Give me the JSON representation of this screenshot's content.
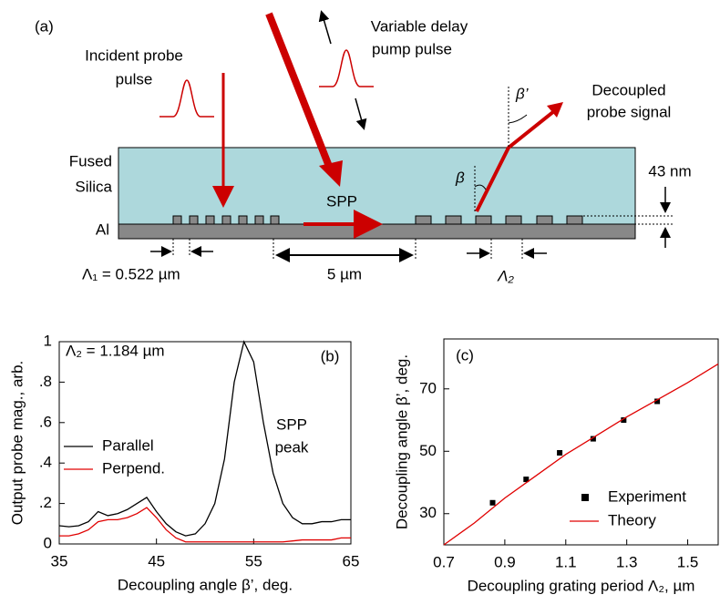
{
  "diagram": {
    "panel_label": "(a)",
    "incident_label": [
      "Incident probe",
      "pulse"
    ],
    "pump_label": [
      "Variable delay",
      "pump pulse"
    ],
    "decoupled_label": [
      "Decoupled",
      "probe signal"
    ],
    "silica_label": [
      "Fused",
      "Silica"
    ],
    "al_label": "Al",
    "spp_label": "SPP",
    "beta_prime": "β’",
    "beta": "β",
    "thickness_label": "43 nm",
    "period1_label": "Λ₁ = 0.522 µm",
    "gap_label": "5 µm",
    "period2_label": "Λ₂"
  },
  "chart_data": [
    {
      "type": "line",
      "xlabel": "Decoupling angle β’, deg.",
      "ylabel": "Output probe mag., arb.",
      "annotations": [
        "Λ₂ = 1.184 µm",
        "(b)",
        "SPP",
        "peak"
      ],
      "x": [
        35,
        36,
        37,
        38,
        39,
        40,
        41,
        42,
        43,
        44,
        45,
        46,
        47,
        48,
        49,
        50,
        51,
        52,
        53,
        54,
        55,
        56,
        57,
        58,
        59,
        60,
        61,
        62,
        63,
        64,
        65
      ],
      "series": [
        {
          "name": "Parallel",
          "color": "#000000",
          "values": [
            0.09,
            0.085,
            0.09,
            0.11,
            0.16,
            0.14,
            0.15,
            0.17,
            0.2,
            0.23,
            0.16,
            0.1,
            0.06,
            0.04,
            0.05,
            0.1,
            0.2,
            0.42,
            0.8,
            1.0,
            0.9,
            0.6,
            0.35,
            0.2,
            0.13,
            0.1,
            0.1,
            0.11,
            0.11,
            0.12,
            0.12
          ]
        },
        {
          "name": "Perpend.",
          "color": "#e00000",
          "values": [
            0.04,
            0.04,
            0.05,
            0.07,
            0.11,
            0.12,
            0.12,
            0.13,
            0.15,
            0.18,
            0.13,
            0.07,
            0.03,
            0.01,
            0.01,
            0.01,
            0.01,
            0.01,
            0.01,
            0.01,
            0.01,
            0.01,
            0.01,
            0.01,
            0.015,
            0.02,
            0.02,
            0.02,
            0.02,
            0.03,
            0.03
          ]
        }
      ],
      "xlim": [
        35,
        65
      ],
      "xticks": [
        35,
        45,
        55,
        65
      ],
      "ylim": [
        0,
        1
      ],
      "yticks": [
        0,
        {
          "value": 0.2,
          "label": ".2"
        },
        {
          "value": 0.4,
          "label": ".4"
        },
        {
          "value": 0.6,
          "label": ".6"
        },
        {
          "value": 0.8,
          "label": ".8"
        },
        1
      ],
      "grid": false
    },
    {
      "type": "scatter",
      "xlabel": "Decoupling grating period Λ₂, µm",
      "ylabel": "Decoupling angle β’, deg.",
      "annotations": [
        "(c)"
      ],
      "series": [
        {
          "name": "Experiment",
          "color": "#000000",
          "type": "scatter",
          "x": [
            0.86,
            0.97,
            1.08,
            1.19,
            1.29,
            1.4
          ],
          "values": [
            33.5,
            41,
            49.5,
            54,
            60,
            66
          ]
        },
        {
          "name": "Theory",
          "color": "#e00000",
          "type": "line",
          "x": [
            0.7,
            0.8,
            0.9,
            1.0,
            1.1,
            1.2,
            1.3,
            1.4,
            1.5,
            1.6
          ],
          "values": [
            20,
            27,
            35,
            42,
            49,
            55,
            61,
            66.5,
            72,
            78
          ]
        }
      ],
      "xlim": [
        0.7,
        1.6
      ],
      "xticks": [
        0.7,
        0.9,
        1.1,
        1.3,
        1.5
      ],
      "ylim": [
        20,
        86
      ],
      "yticks": [
        30,
        50,
        70
      ],
      "grid": false
    }
  ]
}
